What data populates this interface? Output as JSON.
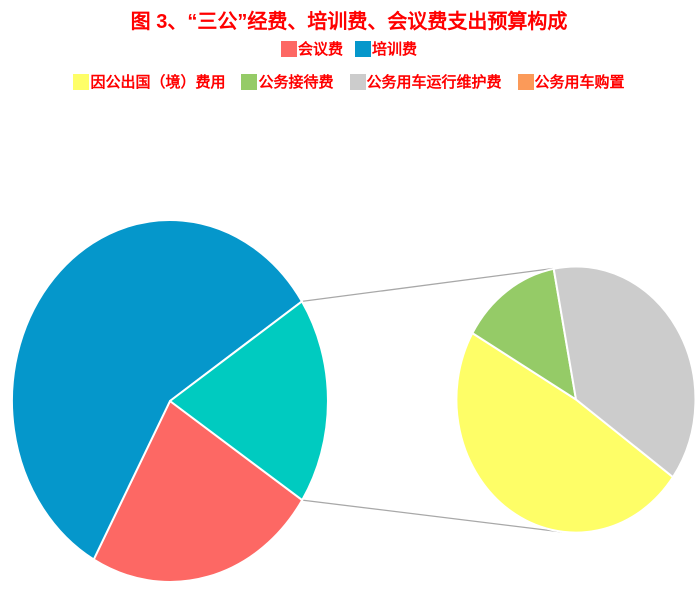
{
  "title": "图 3、“三公”经费、培训费、会议费支出预算构成",
  "title_color": "#FF0000",
  "legend": {
    "rows": [
      {
        "items": [
          {
            "label": "会议费",
            "color": "#FD6864"
          },
          {
            "label": "培训费",
            "color": "#0597CB"
          }
        ]
      },
      {
        "items": [
          {
            "label": "因公出国（境）费用",
            "color": "#FEFE67"
          },
          {
            "label": "公务接待费",
            "color": "#95CB67"
          },
          {
            "label": "公务用车运行维护费",
            "color": "#CCCCCC"
          },
          {
            "label": "公务用车购置",
            "color": "#FB9A59"
          }
        ]
      }
    ]
  },
  "chart_data": {
    "type": "pie",
    "subtype": "pie-of-pie",
    "title": "图 3、“三公”经费、培训费、会议费支出预算构成",
    "legend_position": "top",
    "values_are_estimated_pct": true,
    "connector_line_color": "#A8A8A8",
    "slice_border_color": "#FFFFFF",
    "primary": {
      "start_angle_deg": 33.2,
      "clockwise": true,
      "slices": [
        {
          "name": "meeting-fee",
          "label": "会议费",
          "color": "#FD6864",
          "pct": 23.8
        },
        {
          "name": "training-fee",
          "label": "培训费",
          "color": "#0597CB",
          "pct": 57.7
        },
        {
          "name": "grouped-other",
          "label": "",
          "color": "#00CBC0",
          "pct": 18.5,
          "expands_to_secondary": true
        }
      ]
    },
    "secondary": {
      "pct_basis": "share_of_grouped_slice",
      "start_angle_deg": 35.7,
      "clockwise": true,
      "slices": [
        {
          "name": "abroad-fee",
          "label": "因公出国（境）费用",
          "color": "#FEFE67",
          "pct": 48.4
        },
        {
          "name": "reception-fee",
          "label": "公务接待费",
          "color": "#95CB67",
          "pct": 13.7
        },
        {
          "name": "vehicle-maintenance-fee",
          "label": "公务用车运行维护费",
          "color": "#CCCCCC",
          "pct": 37.9
        },
        {
          "name": "vehicle-purchase",
          "label": "公务用车购置",
          "color": "#FB9A59",
          "pct": 0
        }
      ]
    }
  }
}
